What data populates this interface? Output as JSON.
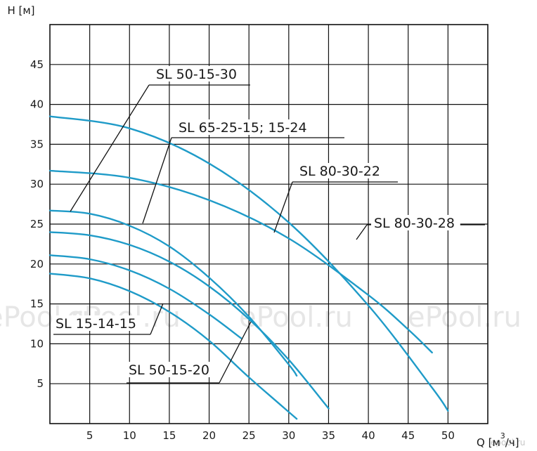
{
  "chart_data": {
    "type": "line",
    "title": "",
    "ylabel": "H [м]",
    "xlabel": "Q [м³/ч]",
    "xlabel_parts": {
      "prefix": "Q [",
      "unit_base": "м",
      "unit_exp": "3",
      "unit_rest": "/ч]"
    },
    "xlim": [
      0,
      55
    ],
    "ylim": [
      0,
      50
    ],
    "x_ticks": [
      "5",
      "10",
      "15",
      "20",
      "25",
      "30",
      "35",
      "40",
      "45",
      "50"
    ],
    "y_ticks": [
      "5",
      "10",
      "15",
      "20",
      "25",
      "30",
      "35",
      "40",
      "45"
    ],
    "grid": true,
    "curve_color": "#1f9bc8",
    "series": [
      {
        "name": "SL 50-15-30",
        "x": [
          0,
          5,
          10,
          15,
          20,
          25,
          30,
          35
        ],
        "y": [
          24.0,
          23.6,
          22.4,
          20.3,
          17.2,
          13.1,
          8.0,
          1.9
        ]
      },
      {
        "name": "SL 65-25-15; 15-24",
        "x": [
          0,
          5,
          10,
          15,
          20,
          25,
          30,
          31
        ],
        "y": [
          26.7,
          26.3,
          24.8,
          22.2,
          18.3,
          13.4,
          7.4,
          6.0
        ]
      },
      {
        "name": "SL 80-30-22",
        "x": [
          0,
          10,
          20,
          30,
          40,
          45,
          48
        ],
        "y": [
          31.7,
          30.8,
          28.0,
          23.2,
          16.1,
          11.8,
          8.9
        ]
      },
      {
        "name": "SL 80-30-28",
        "x": [
          0,
          10,
          20,
          30,
          40,
          48,
          50
        ],
        "y": [
          38.5,
          37.0,
          32.6,
          25.2,
          14.8,
          4.5,
          1.6
        ]
      },
      {
        "name": "SL 15-14-15",
        "x": [
          0,
          5,
          10,
          15,
          20,
          25,
          31
        ],
        "y": [
          18.8,
          18.2,
          16.6,
          14.0,
          10.4,
          5.8,
          0.6
        ]
      },
      {
        "name": "SL 50-15-20",
        "x": [
          0,
          5,
          10,
          15,
          20,
          24
        ],
        "y": [
          21.1,
          20.6,
          19.2,
          16.9,
          13.7,
          10.7
        ]
      }
    ],
    "annotations": [
      {
        "text": "SL 50-15-30",
        "series": "SL 50-15-30"
      },
      {
        "text": "SL 65-25-15; 15-24",
        "series": "SL 65-25-15; 15-24"
      },
      {
        "text": "SL 80-30-22",
        "series": "SL 80-30-22"
      },
      {
        "text": "SL 80-30-28",
        "series": "SL 80-30-28"
      },
      {
        "text": "SL 15-14-15",
        "series": "SL 15-14-15"
      },
      {
        "text": "SL 50-15-20",
        "series": "SL 50-15-20"
      }
    ]
  },
  "watermarks": [
    "ePool.ru",
    "ePool.ru",
    "ePool.ru",
    "ePool.ru",
    "epool.ru"
  ]
}
